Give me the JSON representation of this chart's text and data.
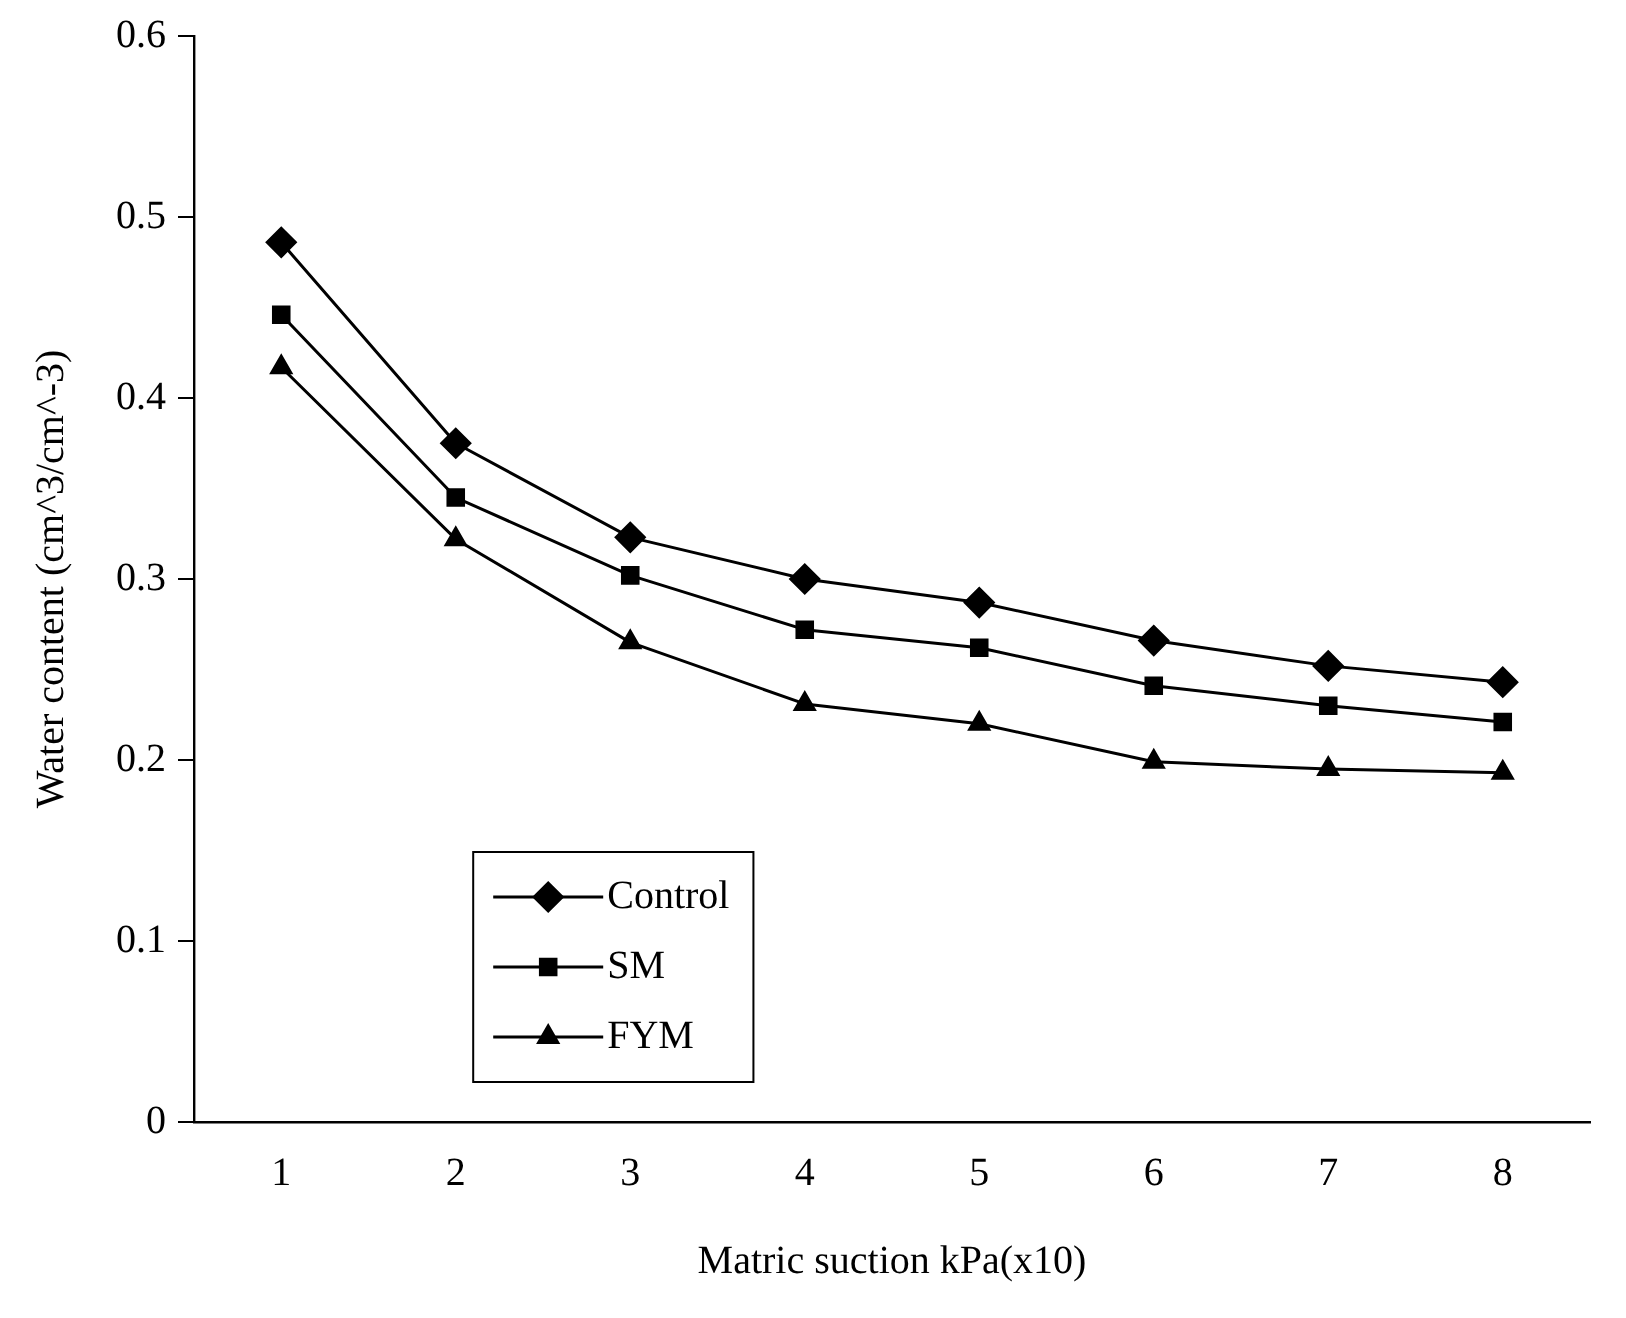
{
  "chart_data": {
    "type": "line",
    "xlabel": "Matric suction kPa(x10)",
    "ylabel": "Water content (cm^3/cm^-3)",
    "categories": [
      "1",
      "2",
      "3",
      "4",
      "5",
      "6",
      "7",
      "8"
    ],
    "ylim": [
      0,
      0.6
    ],
    "yticks": [
      0,
      0.1,
      0.2,
      0.3,
      0.4,
      0.5,
      0.6
    ],
    "grid": false,
    "legend": "bottom left",
    "line_style": "solid",
    "series": [
      {
        "name": "Control",
        "color": "#000000",
        "marker": "diamond",
        "values": [
          0.486,
          0.375,
          0.323,
          0.3,
          0.287,
          0.266,
          0.252,
          0.243
        ]
      },
      {
        "name": "SM",
        "color": "#000000",
        "marker": "square",
        "values": [
          0.446,
          0.345,
          0.302,
          0.272,
          0.262,
          0.241,
          0.23,
          0.221
        ]
      },
      {
        "name": "FYM",
        "color": "#000000",
        "marker": "triangle",
        "values": [
          0.417,
          0.322,
          0.265,
          0.231,
          0.22,
          0.199,
          0.195,
          0.193
        ]
      }
    ]
  }
}
